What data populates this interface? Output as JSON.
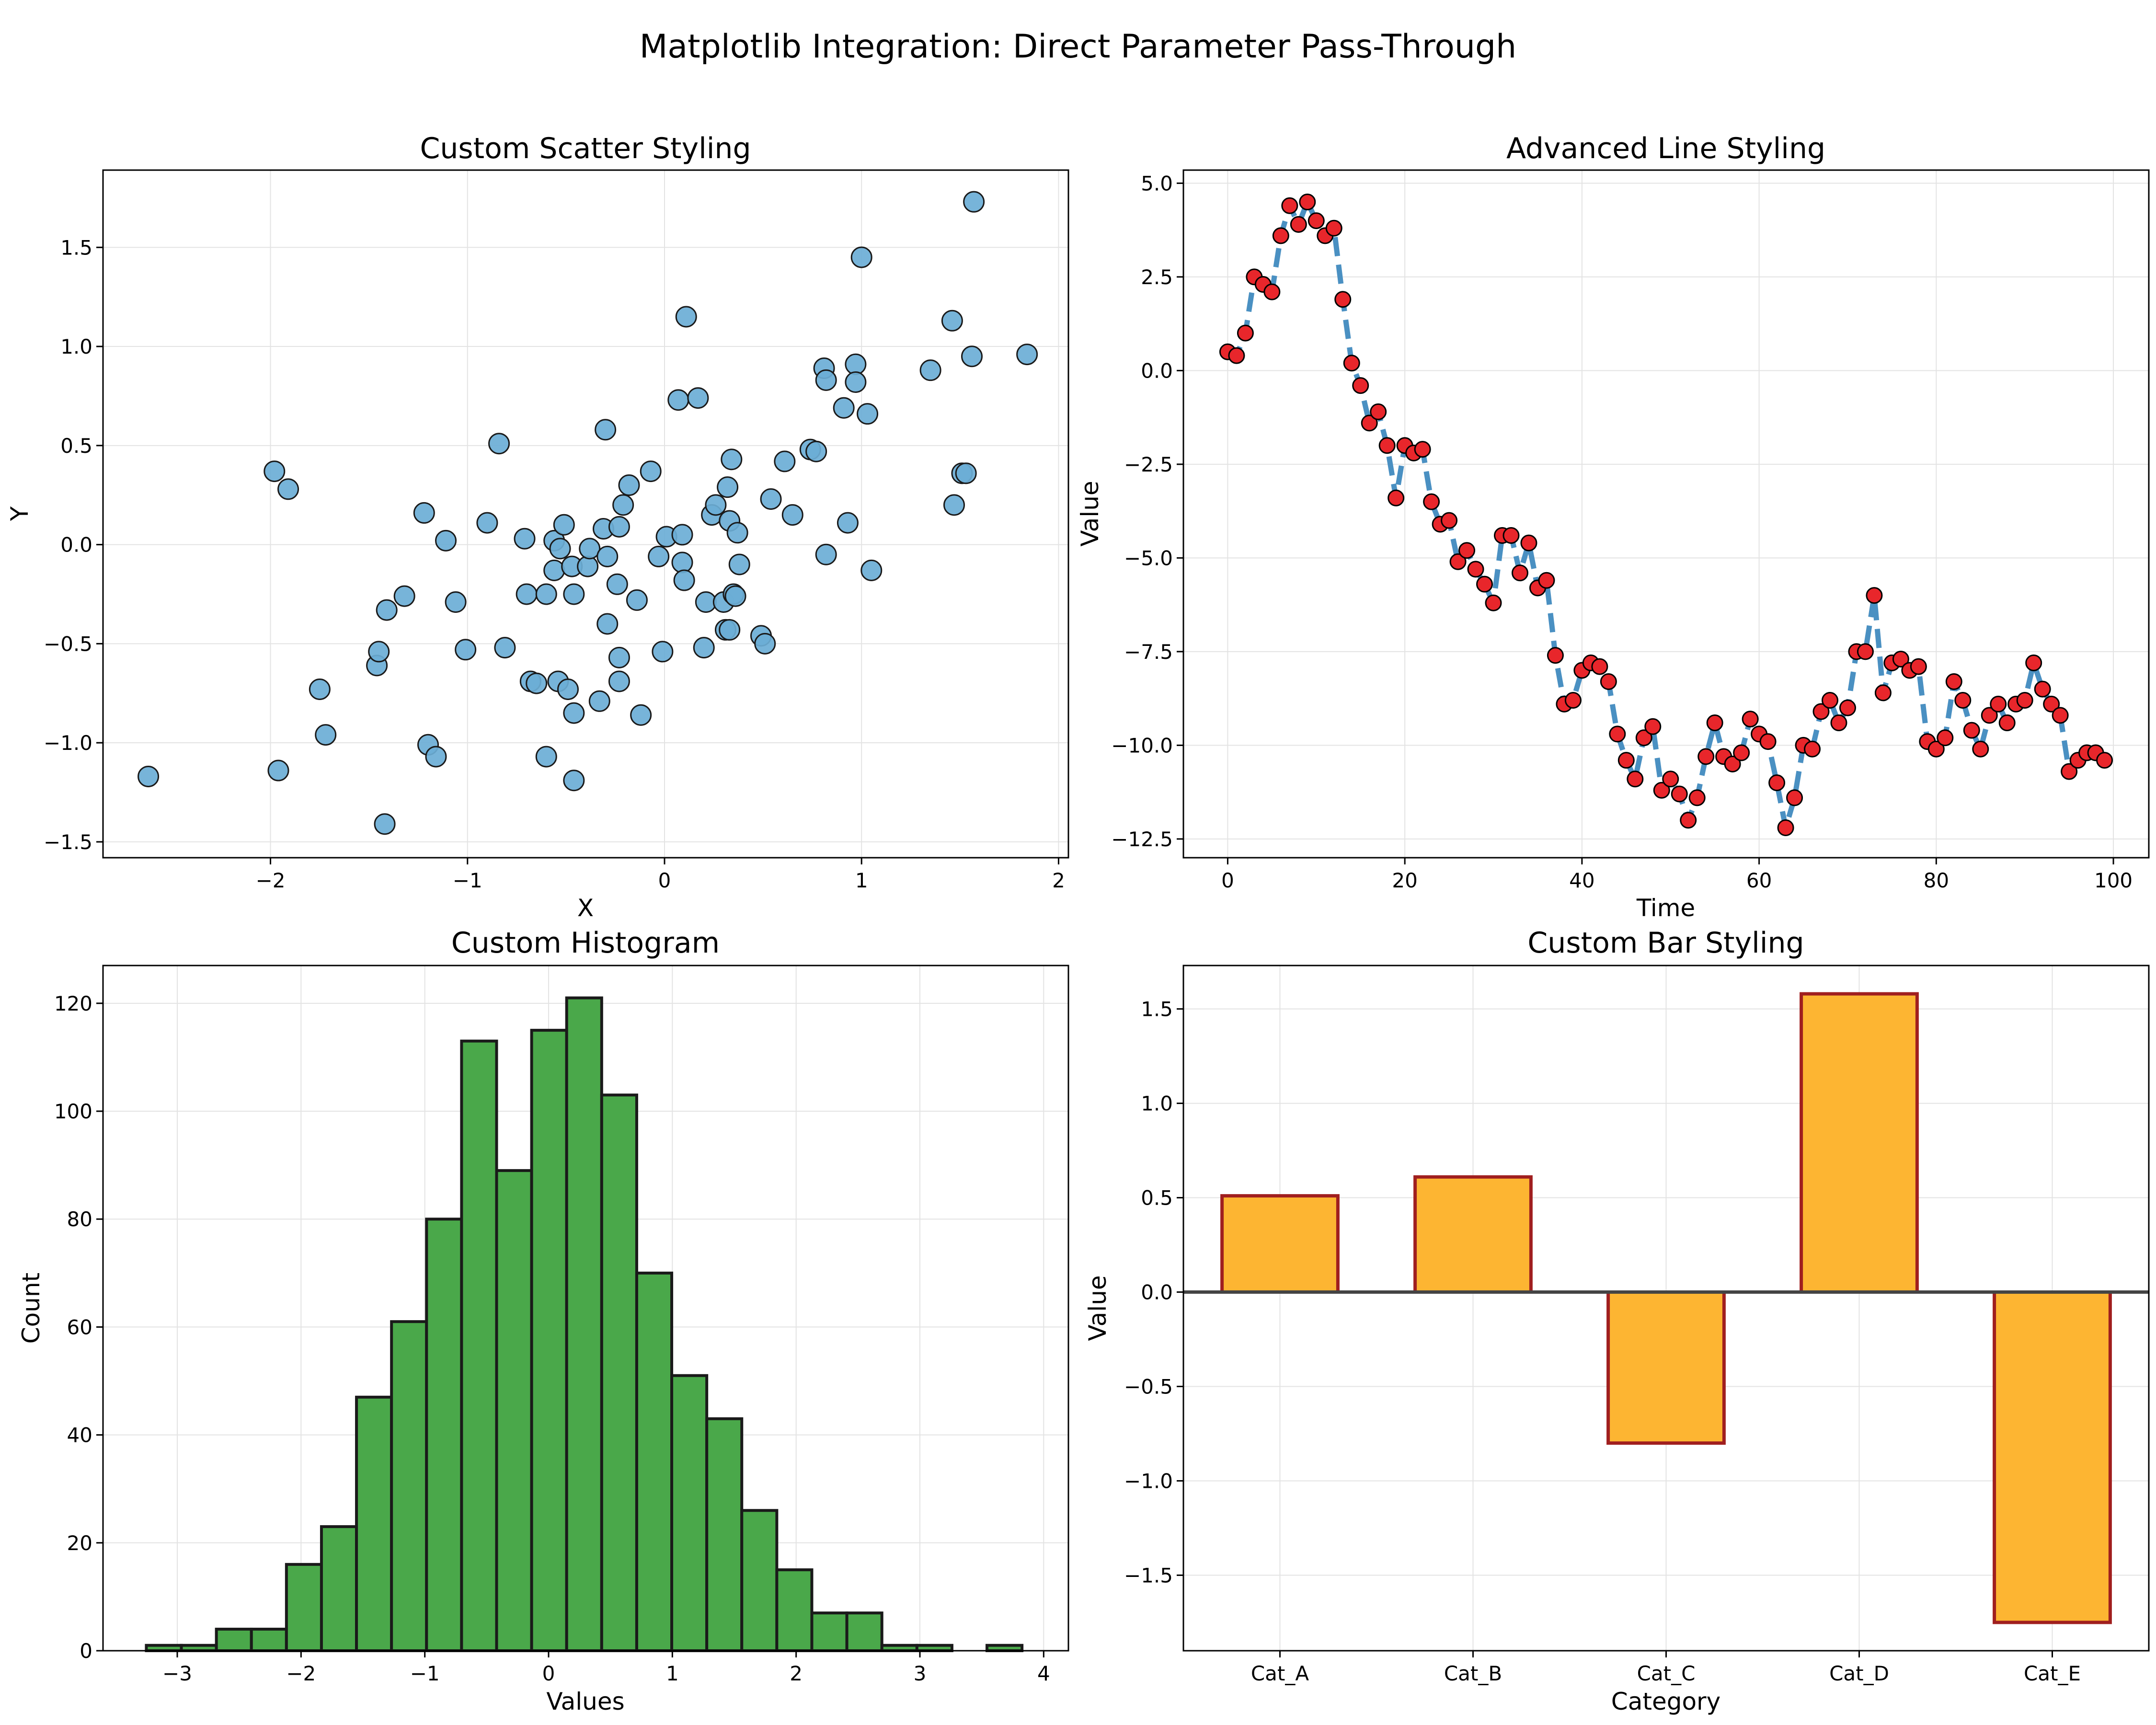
{
  "figure": {
    "suptitle": "Matplotlib Integration: Direct Parameter Pass-Through"
  },
  "chart_data": [
    {
      "type": "scatter",
      "title": "Custom Scatter Styling",
      "xlabel": "X",
      "ylabel": "Y",
      "xlim": [
        -2.85,
        2.05
      ],
      "ylim": [
        -1.58,
        1.89
      ],
      "xticks": [
        -2,
        -1,
        0,
        1,
        2
      ],
      "xtick_labels": [
        "−2",
        "−1",
        "0",
        "1",
        "2"
      ],
      "yticks": [
        -1.5,
        -1.0,
        -0.5,
        0.0,
        0.5,
        1.0,
        1.5
      ],
      "ytick_labels": [
        "−1.5",
        "−1.0",
        "−0.5",
        "0.0",
        "0.5",
        "1.0",
        "1.5"
      ],
      "grid": true,
      "marker_color": "#6baed6",
      "edge_color": "#1a1a1a",
      "points": [
        [
          -2.62,
          -1.17
        ],
        [
          -1.98,
          0.37
        ],
        [
          -1.96,
          -1.14
        ],
        [
          -1.91,
          0.28
        ],
        [
          -1.75,
          -0.73
        ],
        [
          -1.72,
          -0.96
        ],
        [
          -1.46,
          -0.61
        ],
        [
          -1.45,
          -0.54
        ],
        [
          -1.41,
          -0.33
        ],
        [
          -1.42,
          -1.41
        ],
        [
          -1.32,
          -0.26
        ],
        [
          -1.22,
          0.16
        ],
        [
          -1.2,
          -1.01
        ],
        [
          -1.16,
          -1.07
        ],
        [
          -1.11,
          0.02
        ],
        [
          -1.06,
          -0.29
        ],
        [
          -1.01,
          -0.53
        ],
        [
          -0.9,
          0.11
        ],
        [
          -0.84,
          0.51
        ],
        [
          -0.81,
          -0.52
        ],
        [
          -0.71,
          0.03
        ],
        [
          -0.7,
          -0.25
        ],
        [
          -0.68,
          -0.69
        ],
        [
          -0.65,
          -0.7
        ],
        [
          -0.6,
          -0.25
        ],
        [
          -0.6,
          -1.07
        ],
        [
          -0.56,
          0.02
        ],
        [
          -0.56,
          -0.13
        ],
        [
          -0.54,
          -0.69
        ],
        [
          -0.53,
          -0.02
        ],
        [
          -0.51,
          0.1
        ],
        [
          -0.49,
          -0.73
        ],
        [
          -0.47,
          -0.11
        ],
        [
          -0.46,
          -0.25
        ],
        [
          -0.46,
          -0.85
        ],
        [
          -0.46,
          -1.19
        ],
        [
          -0.39,
          -0.11
        ],
        [
          -0.38,
          -0.02
        ],
        [
          -0.33,
          -0.79
        ],
        [
          -0.31,
          0.08
        ],
        [
          -0.3,
          0.58
        ],
        [
          -0.29,
          -0.06
        ],
        [
          -0.29,
          -0.4
        ],
        [
          -0.24,
          -0.2
        ],
        [
          -0.23,
          0.09
        ],
        [
          -0.23,
          -0.57
        ],
        [
          -0.23,
          -0.69
        ],
        [
          -0.21,
          0.2
        ],
        [
          -0.18,
          0.3
        ],
        [
          -0.14,
          -0.28
        ],
        [
          -0.12,
          -0.86
        ],
        [
          -0.07,
          0.37
        ],
        [
          -0.03,
          -0.06
        ],
        [
          -0.01,
          -0.54
        ],
        [
          0.01,
          0.04
        ],
        [
          0.07,
          0.73
        ],
        [
          0.09,
          0.05
        ],
        [
          0.09,
          -0.09
        ],
        [
          0.1,
          -0.18
        ],
        [
          0.11,
          1.15
        ],
        [
          0.17,
          0.74
        ],
        [
          0.2,
          -0.52
        ],
        [
          0.21,
          -0.29
        ],
        [
          0.24,
          0.15
        ],
        [
          0.26,
          0.2
        ],
        [
          0.3,
          -0.29
        ],
        [
          0.31,
          -0.43
        ],
        [
          0.32,
          0.29
        ],
        [
          0.33,
          -0.43
        ],
        [
          0.33,
          0.12
        ],
        [
          0.34,
          0.43
        ],
        [
          0.35,
          -0.25
        ],
        [
          0.36,
          -0.26
        ],
        [
          0.37,
          0.06
        ],
        [
          0.38,
          -0.1
        ],
        [
          0.49,
          -0.46
        ],
        [
          0.51,
          -0.5
        ],
        [
          0.54,
          0.23
        ],
        [
          0.61,
          0.42
        ],
        [
          0.65,
          0.15
        ],
        [
          0.74,
          0.48
        ],
        [
          0.77,
          0.47
        ],
        [
          0.81,
          0.89
        ],
        [
          0.82,
          0.83
        ],
        [
          0.82,
          -0.05
        ],
        [
          0.91,
          0.69
        ],
        [
          0.93,
          0.11
        ],
        [
          0.97,
          0.91
        ],
        [
          0.97,
          0.82
        ],
        [
          1.0,
          1.45
        ],
        [
          1.03,
          0.66
        ],
        [
          1.05,
          -0.13
        ],
        [
          1.35,
          0.88
        ],
        [
          1.46,
          1.13
        ],
        [
          1.47,
          0.2
        ],
        [
          1.51,
          0.36
        ],
        [
          1.53,
          0.36
        ],
        [
          1.56,
          0.95
        ],
        [
          1.57,
          1.73
        ],
        [
          1.84,
          0.96
        ]
      ]
    },
    {
      "type": "line",
      "title": "Advanced Line Styling",
      "xlabel": "Time",
      "ylabel": "Value",
      "xlim": [
        -5,
        104
      ],
      "ylim": [
        -13.0,
        5.35
      ],
      "xticks": [
        0,
        20,
        40,
        60,
        80,
        100
      ],
      "xtick_labels": [
        "0",
        "20",
        "40",
        "60",
        "80",
        "100"
      ],
      "yticks": [
        -12.5,
        -10.0,
        -7.5,
        -5.0,
        -2.5,
        0.0,
        2.5,
        5.0
      ],
      "ytick_labels": [
        "−12.5",
        "−10.0",
        "−7.5",
        "−5.0",
        "−2.5",
        "0.0",
        "2.5",
        "5.0"
      ],
      "grid": true,
      "line_color": "#4a90c2",
      "marker_color": "#e8262b",
      "edge_color": "#000000",
      "x_start": 0,
      "values": [
        0.5,
        0.4,
        1.0,
        2.5,
        2.3,
        2.1,
        3.6,
        4.4,
        3.9,
        4.5,
        4.0,
        3.6,
        3.8,
        1.9,
        0.2,
        -0.4,
        -1.4,
        -1.1,
        -2.0,
        -3.4,
        -2.0,
        -2.2,
        -2.1,
        -3.5,
        -4.1,
        -4.0,
        -5.1,
        -4.8,
        -5.3,
        -5.7,
        -6.2,
        -4.4,
        -4.4,
        -5.4,
        -4.6,
        -5.8,
        -5.6,
        -7.6,
        -8.9,
        -8.8,
        -8.0,
        -7.8,
        -7.9,
        -8.3,
        -9.7,
        -10.4,
        -10.9,
        -9.8,
        -9.5,
        -11.2,
        -10.9,
        -11.3,
        -12.0,
        -11.4,
        -10.3,
        -9.4,
        -10.3,
        -10.5,
        -10.2,
        -9.3,
        -9.7,
        -9.9,
        -11.0,
        -12.2,
        -11.4,
        -10.0,
        -10.1,
        -9.1,
        -8.8,
        -9.4,
        -9.0,
        -7.5,
        -7.5,
        -6.0,
        -8.6,
        -7.8,
        -7.7,
        -8.0,
        -7.9,
        -9.9,
        -10.1,
        -9.8,
        -8.3,
        -8.8,
        -9.6,
        -10.1,
        -9.2,
        -8.9,
        -9.4,
        -8.9,
        -8.8,
        -7.8,
        -8.5,
        -8.9,
        -9.2,
        -10.7,
        -10.4,
        -10.2,
        -10.2,
        -10.4
      ]
    },
    {
      "type": "bar",
      "subtype": "histogram",
      "title": "Custom Histogram",
      "xlabel": "Values",
      "ylabel": "Count",
      "xlim": [
        -3.6,
        4.2
      ],
      "ylim": [
        0,
        127
      ],
      "xticks": [
        -3,
        -2,
        -1,
        0,
        1,
        2,
        3,
        4
      ],
      "xtick_labels": [
        "−3",
        "−2",
        "−1",
        "0",
        "1",
        "2",
        "3",
        "4"
      ],
      "yticks": [
        0,
        20,
        40,
        60,
        80,
        100,
        120
      ],
      "ytick_labels": [
        "0",
        "20",
        "40",
        "60",
        "80",
        "100",
        "120"
      ],
      "grid": true,
      "bar_color": "#4aa84a",
      "edge_color": "#1a1a1a",
      "bin_start": -3.25,
      "bin_width": 0.283,
      "counts": [
        1,
        1,
        4,
        4,
        16,
        23,
        47,
        61,
        80,
        113,
        89,
        115,
        121,
        103,
        70,
        51,
        43,
        26,
        15,
        7,
        7,
        1,
        1,
        0,
        1
      ]
    },
    {
      "type": "bar",
      "title": "Custom Bar Styling",
      "xlabel": "Category",
      "ylabel": "Value",
      "ylim": [
        -1.9,
        1.73
      ],
      "categories": [
        "Cat_A",
        "Cat_B",
        "Cat_C",
        "Cat_D",
        "Cat_E"
      ],
      "values": [
        0.51,
        0.61,
        -0.8,
        1.58,
        -1.75
      ],
      "yticks": [
        -1.5,
        -1.0,
        -0.5,
        0.0,
        0.5,
        1.0,
        1.5
      ],
      "ytick_labels": [
        "−1.5",
        "−1.0",
        "−0.5",
        "0.0",
        "0.5",
        "1.0",
        "1.5"
      ],
      "grid": true,
      "bar_color": "#fdb532",
      "edge_color": "#a01f1f",
      "zero_line_color": "#444444"
    }
  ]
}
